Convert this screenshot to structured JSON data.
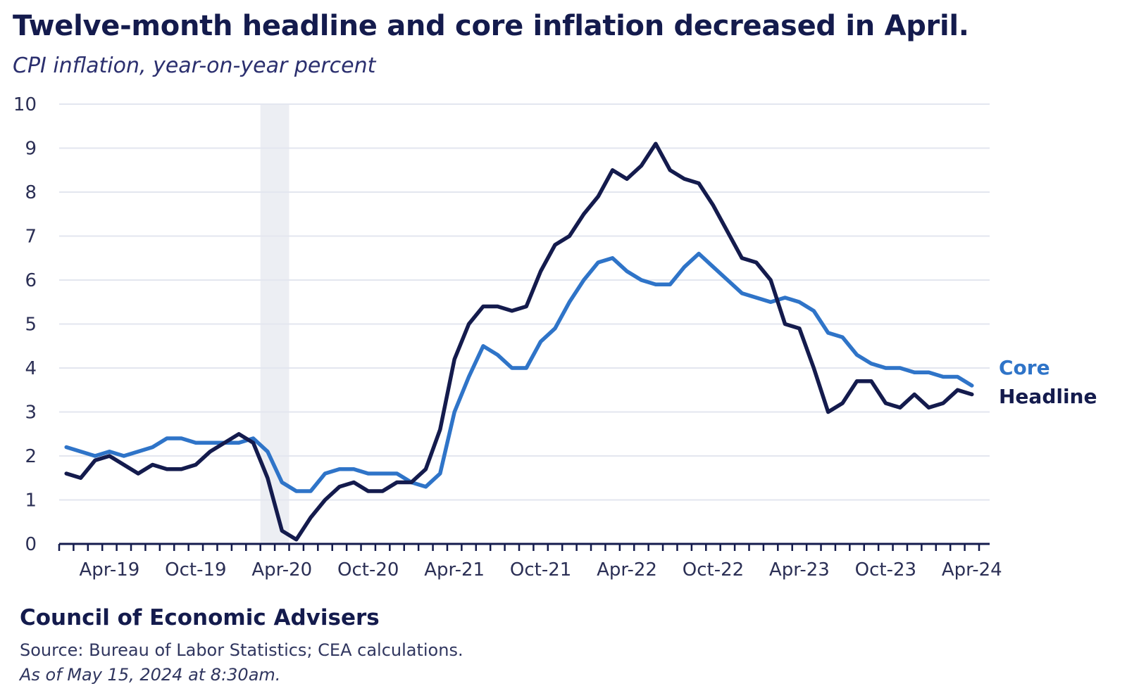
{
  "header": {
    "title": "Twelve-month headline and core inflation decreased in April.",
    "subtitle": "CPI inflation, year-on-year percent"
  },
  "footer": {
    "org": "Council of Economic Advisers",
    "source": "Source: Bureau of Labor Statistics; CEA calculations.",
    "as_of": "As of May 15, 2024 at 8:30am."
  },
  "colors": {
    "headline": "#141b4d",
    "core": "#2f74c8",
    "grid": "#e3e6ef",
    "shade": "#eceef3",
    "axis": "#141b4d"
  },
  "chart_data": {
    "type": "line",
    "x": [
      "Jan-19",
      "Feb-19",
      "Mar-19",
      "Apr-19",
      "May-19",
      "Jun-19",
      "Jul-19",
      "Aug-19",
      "Sep-19",
      "Oct-19",
      "Nov-19",
      "Dec-19",
      "Jan-20",
      "Feb-20",
      "Mar-20",
      "Apr-20",
      "May-20",
      "Jun-20",
      "Jul-20",
      "Aug-20",
      "Sep-20",
      "Oct-20",
      "Nov-20",
      "Dec-20",
      "Jan-21",
      "Feb-21",
      "Mar-21",
      "Apr-21",
      "May-21",
      "Jun-21",
      "Jul-21",
      "Aug-21",
      "Sep-21",
      "Oct-21",
      "Nov-21",
      "Dec-21",
      "Jan-22",
      "Feb-22",
      "Mar-22",
      "Apr-22",
      "May-22",
      "Jun-22",
      "Jul-22",
      "Aug-22",
      "Sep-22",
      "Oct-22",
      "Nov-22",
      "Dec-22",
      "Jan-23",
      "Feb-23",
      "Mar-23",
      "Apr-23",
      "May-23",
      "Jun-23",
      "Jul-23",
      "Aug-23",
      "Sep-23",
      "Oct-23",
      "Nov-23",
      "Dec-23",
      "Jan-24",
      "Feb-24",
      "Mar-24",
      "Apr-24"
    ],
    "tick_labels": [
      "Apr-19",
      "Oct-19",
      "Apr-20",
      "Oct-20",
      "Apr-21",
      "Oct-21",
      "Apr-22",
      "Oct-22",
      "Apr-23",
      "Oct-23",
      "Apr-24"
    ],
    "tick_indices": [
      3,
      9,
      15,
      21,
      27,
      33,
      39,
      45,
      51,
      57,
      63
    ],
    "series": [
      {
        "name": "Core",
        "key": "core",
        "values": [
          2.2,
          2.1,
          2.0,
          2.1,
          2.0,
          2.1,
          2.2,
          2.4,
          2.4,
          2.3,
          2.3,
          2.3,
          2.3,
          2.4,
          2.1,
          1.4,
          1.2,
          1.2,
          1.6,
          1.7,
          1.7,
          1.6,
          1.6,
          1.6,
          1.4,
          1.3,
          1.6,
          3.0,
          3.8,
          4.5,
          4.3,
          4.0,
          4.0,
          4.6,
          4.9,
          5.5,
          6.0,
          6.4,
          6.5,
          6.2,
          6.0,
          5.9,
          5.9,
          6.3,
          6.6,
          6.3,
          6.0,
          5.7,
          5.6,
          5.5,
          5.6,
          5.5,
          5.3,
          4.8,
          4.7,
          4.3,
          4.1,
          4.0,
          4.0,
          3.9,
          3.9,
          3.8,
          3.8,
          3.6
        ]
      },
      {
        "name": "Headline",
        "key": "headline",
        "values": [
          1.6,
          1.5,
          1.9,
          2.0,
          1.8,
          1.6,
          1.8,
          1.7,
          1.7,
          1.8,
          2.1,
          2.3,
          2.5,
          2.3,
          1.5,
          0.3,
          0.1,
          0.6,
          1.0,
          1.3,
          1.4,
          1.2,
          1.2,
          1.4,
          1.4,
          1.7,
          2.6,
          4.2,
          5.0,
          5.4,
          5.4,
          5.3,
          5.4,
          6.2,
          6.8,
          7.0,
          7.5,
          7.9,
          8.5,
          8.3,
          8.6,
          9.1,
          8.5,
          8.3,
          8.2,
          7.7,
          7.1,
          6.5,
          6.4,
          6.0,
          5.0,
          4.9,
          4.0,
          3.0,
          3.2,
          3.7,
          3.7,
          3.2,
          3.1,
          3.4,
          3.1,
          3.2,
          3.5,
          3.4
        ]
      }
    ],
    "ylim": [
      0,
      10
    ],
    "yticks": [
      "0",
      "1",
      "2",
      "3",
      "4",
      "5",
      "6",
      "7",
      "8",
      "9",
      "10"
    ],
    "grid": true,
    "shaded_range": [
      "Mar-20",
      "Apr-20"
    ],
    "legend": "right end of lines"
  }
}
